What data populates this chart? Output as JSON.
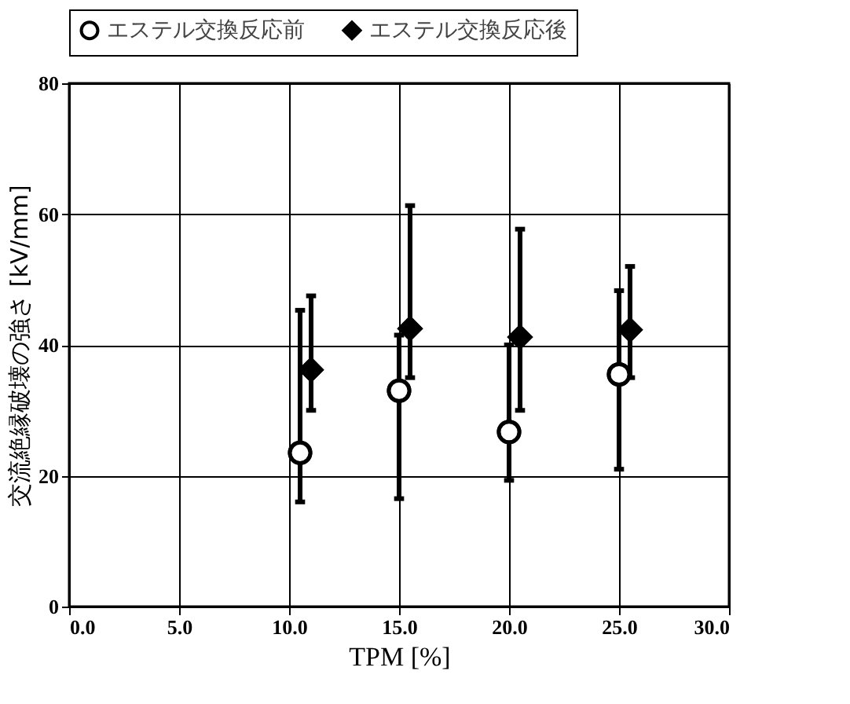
{
  "chart_data": {
    "type": "scatter",
    "xlabel": "TPM [%]",
    "ylabel": "交流絶縁破壊の強さ [kV/mm]",
    "xlim": [
      0,
      30
    ],
    "xticks": [
      {
        "value": 0,
        "label": "0.0"
      },
      {
        "value": 5,
        "label": "5.0"
      },
      {
        "value": 10,
        "label": "10.0"
      },
      {
        "value": 15,
        "label": "15.0"
      },
      {
        "value": 20,
        "label": "20.0"
      },
      {
        "value": 25,
        "label": "25.0"
      },
      {
        "value": 30,
        "label": "30.0"
      }
    ],
    "ylim": [
      0,
      80
    ],
    "yticks": [
      0,
      20,
      40,
      60,
      80
    ],
    "grid": true,
    "legend": "top",
    "series": [
      {
        "name": "エステル交換反応前",
        "color": "#ffffff",
        "marker": "circle",
        "x": [
          10.5,
          15,
          20,
          25
        ],
        "values": [
          23.5,
          33,
          26.7,
          35.5
        ],
        "errors": [
          [
            16,
            45.3
          ],
          [
            16.5,
            41.5
          ],
          [
            19.3,
            40
          ],
          [
            21,
            48.3
          ]
        ]
      },
      {
        "name": "エステル交換反応後",
        "color": "#000000",
        "marker": "diamond",
        "x": [
          11,
          15.5,
          20.5,
          25.5
        ],
        "values": [
          36.2,
          42.5,
          41.2,
          42.3
        ],
        "errors": [
          [
            30,
            47.5
          ],
          [
            35,
            61.3
          ],
          [
            30,
            57.7
          ],
          [
            35,
            52
          ]
        ]
      }
    ]
  }
}
